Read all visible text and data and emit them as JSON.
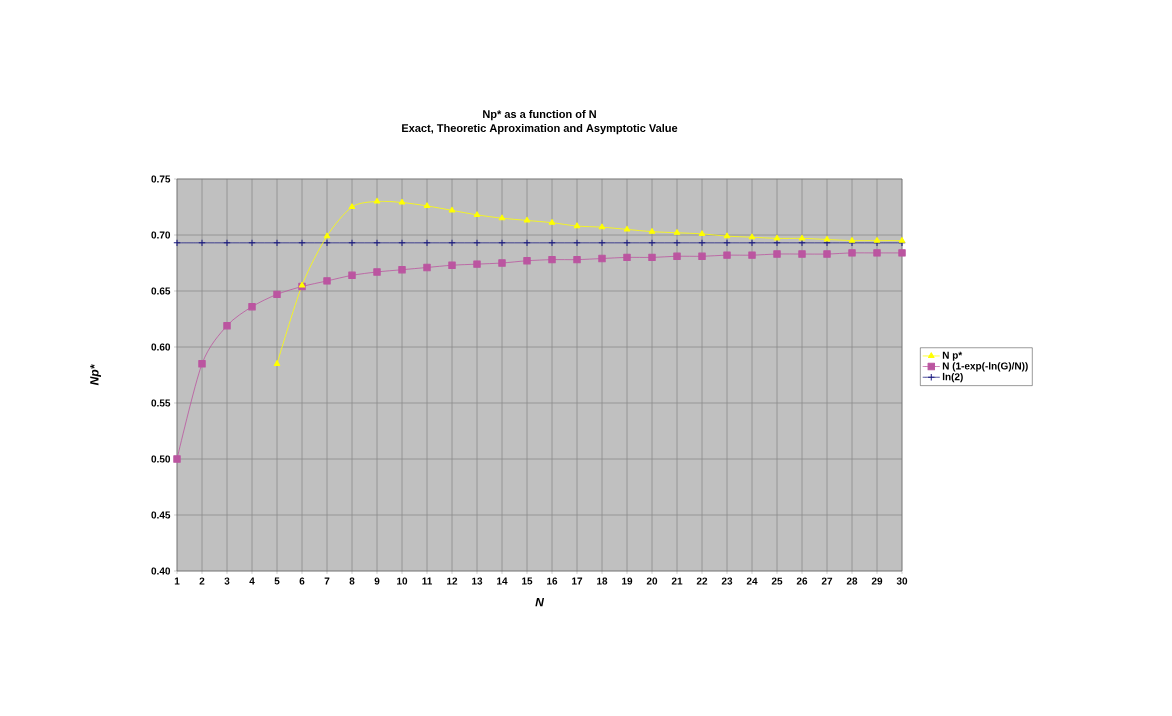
{
  "chart_data": {
    "type": "line",
    "title": "Np* as a function of N",
    "subtitle": "Exact, Theoretic Aproximation and Asymptotic Value",
    "xlabel": "N",
    "ylabel": "Np*",
    "x": [
      1,
      2,
      3,
      4,
      5,
      6,
      7,
      8,
      9,
      10,
      11,
      12,
      13,
      14,
      15,
      16,
      17,
      18,
      19,
      20,
      21,
      22,
      23,
      24,
      25,
      26,
      27,
      28,
      29,
      30
    ],
    "series": [
      {
        "name": "N p*",
        "color": "#ffff00",
        "marker": "triangle",
        "values": [
          null,
          null,
          null,
          null,
          0.585,
          0.655,
          0.699,
          0.725,
          0.73,
          0.729,
          0.726,
          0.722,
          0.718,
          0.715,
          0.713,
          0.711,
          0.708,
          0.707,
          0.705,
          0.703,
          0.702,
          0.701,
          0.699,
          0.698,
          0.697,
          0.697,
          0.696,
          0.695,
          0.695,
          0.695
        ]
      },
      {
        "name": "N (1-exp(-ln(G)/N))",
        "color": "#bb55a0",
        "marker": "square",
        "values": [
          0.5,
          0.585,
          0.619,
          0.636,
          0.647,
          0.654,
          0.659,
          0.664,
          0.667,
          0.669,
          0.671,
          0.673,
          0.674,
          0.675,
          0.677,
          0.678,
          0.678,
          0.679,
          0.68,
          0.68,
          0.681,
          0.681,
          0.682,
          0.682,
          0.683,
          0.683,
          0.683,
          0.684,
          0.684,
          0.684
        ]
      },
      {
        "name": "ln(2)",
        "color": "#1a1a80",
        "marker": "cross",
        "values": [
          0.693,
          0.693,
          0.693,
          0.693,
          0.693,
          0.693,
          0.693,
          0.693,
          0.693,
          0.693,
          0.693,
          0.693,
          0.693,
          0.693,
          0.693,
          0.693,
          0.693,
          0.693,
          0.693,
          0.693,
          0.693,
          0.693,
          0.693,
          0.693,
          0.693,
          0.693,
          0.693,
          0.693,
          0.693,
          0.693
        ]
      }
    ],
    "xlim": [
      1,
      30
    ],
    "xticks": [
      1,
      2,
      3,
      4,
      5,
      6,
      7,
      8,
      9,
      10,
      11,
      12,
      13,
      14,
      15,
      16,
      17,
      18,
      19,
      20,
      21,
      22,
      23,
      24,
      25,
      26,
      27,
      28,
      29,
      30
    ],
    "ylim": [
      0.4,
      0.75
    ],
    "yticks": [
      {
        "value": 0.4,
        "label": "0.40"
      },
      {
        "value": 0.45,
        "label": "0.45"
      },
      {
        "value": 0.5,
        "label": "0.50"
      },
      {
        "value": 0.55,
        "label": "0.55"
      },
      {
        "value": 0.6,
        "label": "0.60"
      },
      {
        "value": 0.65,
        "label": "0.65"
      },
      {
        "value": 0.7,
        "label": "0.70"
      },
      {
        "value": 0.75,
        "label": "0.75"
      }
    ],
    "grid": true,
    "legend": "right"
  }
}
